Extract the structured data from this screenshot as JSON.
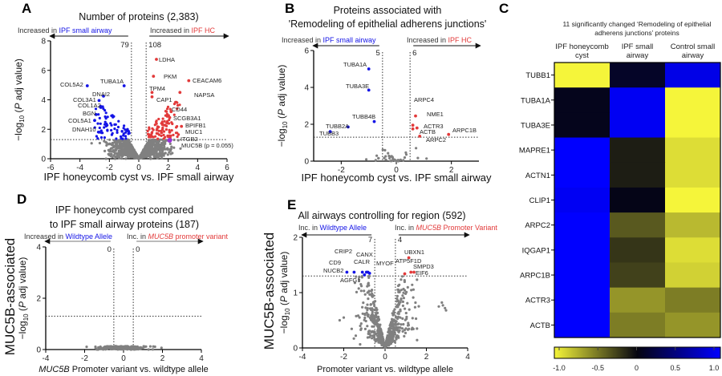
{
  "panel_labels": [
    "A",
    "B",
    "C",
    "D",
    "E"
  ],
  "side_label": "MUC5B-associated",
  "ylabel_parts": {
    "a": "−log",
    "sub": "10",
    "b": " (",
    "p": "P",
    "c": " adj value)"
  },
  "colors": {
    "blue": "#1414e6",
    "red": "#e23a3a",
    "gray": "#808080",
    "purple": "#9b30d9"
  },
  "chart_data": [
    {
      "panel": "A",
      "type": "scatter",
      "title": [
        "Number of proteins (2,383)"
      ],
      "header_left": {
        "prefix": "Increased in ",
        "highlight": "IPF small airway"
      },
      "header_right": {
        "prefix": "Increased in ",
        "highlight": "IPF HC"
      },
      "count_left": "79",
      "count_right": "108",
      "xlabel": {
        "italic": "",
        "text": "IPF honeycomb cyst vs. IPF small airway"
      },
      "xlim": [
        -6,
        6
      ],
      "ylim": [
        0,
        8
      ],
      "xticks": [
        -6,
        -4,
        -2,
        0,
        2,
        4,
        6
      ],
      "yticks": [
        0,
        2,
        4,
        6,
        8
      ],
      "thresholds": {
        "log2fc": 0.5,
        "neglog10p": 1.3
      },
      "total": 2383,
      "n_left": 79,
      "n_right": 108,
      "labeled_points": [
        {
          "label": "COL5A2",
          "x": -3.5,
          "y": 4.95,
          "group": "left"
        },
        {
          "label": "TUBA1A",
          "x": -1.0,
          "y": 4.95,
          "group": "left"
        },
        {
          "label": "DNAI2",
          "x": -2.4,
          "y": 4.25,
          "group": "left"
        },
        {
          "label": "COL3A1",
          "x": -2.7,
          "y": 3.95,
          "group": "left"
        },
        {
          "label": "COL1A2",
          "x": -2.6,
          "y": 3.5,
          "group": "left"
        },
        {
          "label": "BGN",
          "x": -2.9,
          "y": 3.0,
          "group": "left"
        },
        {
          "label": "COL5A1",
          "x": -3.0,
          "y": 2.6,
          "group": "left"
        },
        {
          "label": "DNAH10",
          "x": -2.7,
          "y": 1.8,
          "group": "left"
        },
        {
          "label": "LDHA",
          "x": 1.2,
          "y": 6.75,
          "group": "right"
        },
        {
          "label": "PKM",
          "x": 1.0,
          "y": 5.6,
          "group": "right"
        },
        {
          "label": "CEACAM6",
          "x": 3.4,
          "y": 5.3,
          "group": "right"
        },
        {
          "label": "TPM4",
          "x": 0.9,
          "y": 4.5,
          "group": "right"
        },
        {
          "label": "NAPSA",
          "x": 2.8,
          "y": 4.5,
          "group": "right"
        },
        {
          "label": "CAP1",
          "x": 0.9,
          "y": 4.2,
          "group": "right"
        },
        {
          "label": "CD44",
          "x": 2.2,
          "y": 3.2,
          "group": "right"
        },
        {
          "label": "SCGB3A1",
          "x": 2.1,
          "y": 2.8,
          "group": "right"
        },
        {
          "label": "BPIFB1",
          "x": 2.9,
          "y": 2.2,
          "group": "right"
        },
        {
          "label": "MUC1",
          "x": 2.1,
          "y": 1.8,
          "group": "right"
        },
        {
          "label": "ITGB2",
          "x": 2.0,
          "y": 1.5,
          "group": "right"
        },
        {
          "label": "MUC5B (p = 0.055)",
          "x": 2.1,
          "y": 1.25,
          "group": "highlight"
        }
      ]
    },
    {
      "panel": "B",
      "type": "scatter",
      "title": [
        "Proteins associated with",
        "'Remodeling of epithelial adherens junctions'"
      ],
      "header_left": {
        "prefix": "Increased in ",
        "highlight": "IPF small airway"
      },
      "header_right": {
        "prefix": "Increased in ",
        "highlight": "IPF HC"
      },
      "count_left": "5",
      "count_right": "6",
      "xlabel": {
        "italic": "",
        "text": "IPF honeycomb cyst vs. IPF small airway"
      },
      "xlim": [
        -3,
        3
      ],
      "ylim": [
        0,
        6
      ],
      "xticks": [
        -2,
        0,
        2
      ],
      "yticks": [
        0,
        2,
        4,
        6
      ],
      "thresholds": {
        "log2fc": 0.5,
        "neglog10p": 1.3
      },
      "n_left": 5,
      "n_right": 6,
      "labeled_points": [
        {
          "label": "TUBA1A",
          "x": -1.0,
          "y": 5.0,
          "group": "left"
        },
        {
          "label": "TUBA3E",
          "x": -1.0,
          "y": 3.85,
          "group": "left"
        },
        {
          "label": "TUBB4B",
          "x": -0.8,
          "y": 2.15,
          "group": "left"
        },
        {
          "label": "TUBB2A",
          "x": -1.75,
          "y": 1.85,
          "group": "left"
        },
        {
          "label": "TUBB3",
          "x": -2.4,
          "y": 1.6,
          "group": "left"
        },
        {
          "label": "ARPC4",
          "x": 0.6,
          "y": 1.95,
          "group": "right"
        },
        {
          "label": "NME1",
          "x": 0.7,
          "y": 2.45,
          "group": "right"
        },
        {
          "label": "ACTR3",
          "x": 0.6,
          "y": 1.75,
          "group": "right"
        },
        {
          "label": "ACTB",
          "x": 0.75,
          "y": 1.8,
          "group": "right"
        },
        {
          "label": "ARPC2",
          "x": 0.85,
          "y": 1.35,
          "group": "right"
        },
        {
          "label": "ARPC1B",
          "x": 1.9,
          "y": 1.45,
          "group": "right"
        }
      ]
    },
    {
      "panel": "C",
      "type": "heatmap",
      "title": [
        "11 significantly changed ‘Remodeling of epithelial",
        "adherens junctions’ proteins"
      ],
      "columns": [
        [
          "IPF honeycomb",
          "cyst"
        ],
        [
          "IPF small",
          "airway"
        ],
        [
          "Control small",
          "airway"
        ]
      ],
      "rows": [
        "TUBB1",
        "TUBA1A",
        "TUBA3E",
        "MAPRE1",
        "ACTN1",
        "CLIP1",
        "ARPC2",
        "IQGAP1",
        "ARPC1B",
        "ACTR3",
        "ACTB"
      ],
      "values": [
        [
          -1.0,
          0.1,
          0.9
        ],
        [
          0.05,
          0.95,
          -1.0
        ],
        [
          0.05,
          0.95,
          -1.0
        ],
        [
          1.0,
          -0.1,
          -0.9
        ],
        [
          1.0,
          -0.1,
          -0.9
        ],
        [
          0.95,
          0.03,
          -1.0
        ],
        [
          1.0,
          -0.35,
          -0.75
        ],
        [
          1.0,
          -0.2,
          -0.9
        ],
        [
          1.0,
          -0.25,
          -0.85
        ],
        [
          1.0,
          -0.6,
          -0.5
        ],
        [
          1.0,
          -0.5,
          -0.6
        ]
      ],
      "colorbar": {
        "ticks": [
          "-1.0",
          "-0.5",
          "0",
          "0.5",
          "1.0"
        ],
        "range": [
          -1,
          1
        ],
        "low": "#f5f53a",
        "mid": "#050510",
        "high": "#0000ff"
      }
    },
    {
      "panel": "D",
      "type": "scatter",
      "title": [
        "IPF honeycomb cyst compared",
        "to IPF small airway proteins (187)"
      ],
      "header_left": {
        "prefix": "Increased in ",
        "highlight": "Wildtype Allele",
        "italic": false
      },
      "header_right": {
        "prefix": "Inc. in ",
        "highlight": "MUC5B",
        "suffix": " promoter variant"
      },
      "count_left": "0",
      "count_right": "0",
      "xlabel": {
        "italic": "MUC5B",
        "text": " Promoter variant vs. wildtype allele"
      },
      "xlim": [
        -4,
        4
      ],
      "ylim": [
        0,
        4
      ],
      "xticks": [
        -4,
        -2,
        0,
        2,
        4
      ],
      "yticks": [
        0,
        2,
        4
      ],
      "thresholds": {
        "log2fc": 0.5,
        "neglog10p": 1.3
      },
      "total": 187,
      "n_left": 0,
      "n_right": 0,
      "labeled_points": []
    },
    {
      "panel": "E",
      "type": "scatter",
      "title": [
        "All airways controlling for region (592)"
      ],
      "header_left": {
        "prefix": "Inc. in ",
        "highlight": "Wildtype Allele"
      },
      "header_right": {
        "prefix": "Inc. in ",
        "highlight": "MUC5B",
        "suffix": " Promoter Variant"
      },
      "count_left": "7",
      "count_right": "4",
      "xlabel": {
        "italic": "",
        "text": "Promoter variant vs. wildtype allele"
      },
      "xlim": [
        -4,
        4
      ],
      "ylim": [
        0,
        2
      ],
      "xticks": [
        -4,
        -2,
        0,
        2,
        4
      ],
      "yticks": [
        0,
        1,
        2
      ],
      "thresholds": {
        "log2fc": 0.5,
        "neglog10p": 1.3
      },
      "total": 592,
      "n_left": 7,
      "n_right": 4,
      "labeled_points": [
        {
          "label": "NUCB2",
          "x": -1.85,
          "y": 1.37,
          "group": "left"
        },
        {
          "label": "CD9",
          "x": -1.5,
          "y": 1.37,
          "group": "left"
        },
        {
          "label": "CRIP2",
          "x": -1.1,
          "y": 1.37,
          "group": "left"
        },
        {
          "label": "AGFG1",
          "x": -1.0,
          "y": 1.32,
          "group": "left"
        },
        {
          "label": "CANX",
          "x": -0.9,
          "y": 1.37,
          "group": "left"
        },
        {
          "label": "CALR",
          "x": -0.83,
          "y": 1.37,
          "group": "left"
        },
        {
          "label": "MYOF",
          "x": -0.75,
          "y": 1.35,
          "group": "left"
        },
        {
          "label": "UBXN1",
          "x": 1.15,
          "y": 1.63,
          "group": "right"
        },
        {
          "label": "ATP5F1D",
          "x": 0.95,
          "y": 1.34,
          "group": "right"
        },
        {
          "label": "SMPD3",
          "x": 1.25,
          "y": 1.37,
          "group": "right"
        },
        {
          "label": "EIF6",
          "x": 1.4,
          "y": 1.37,
          "group": "right"
        }
      ]
    }
  ]
}
